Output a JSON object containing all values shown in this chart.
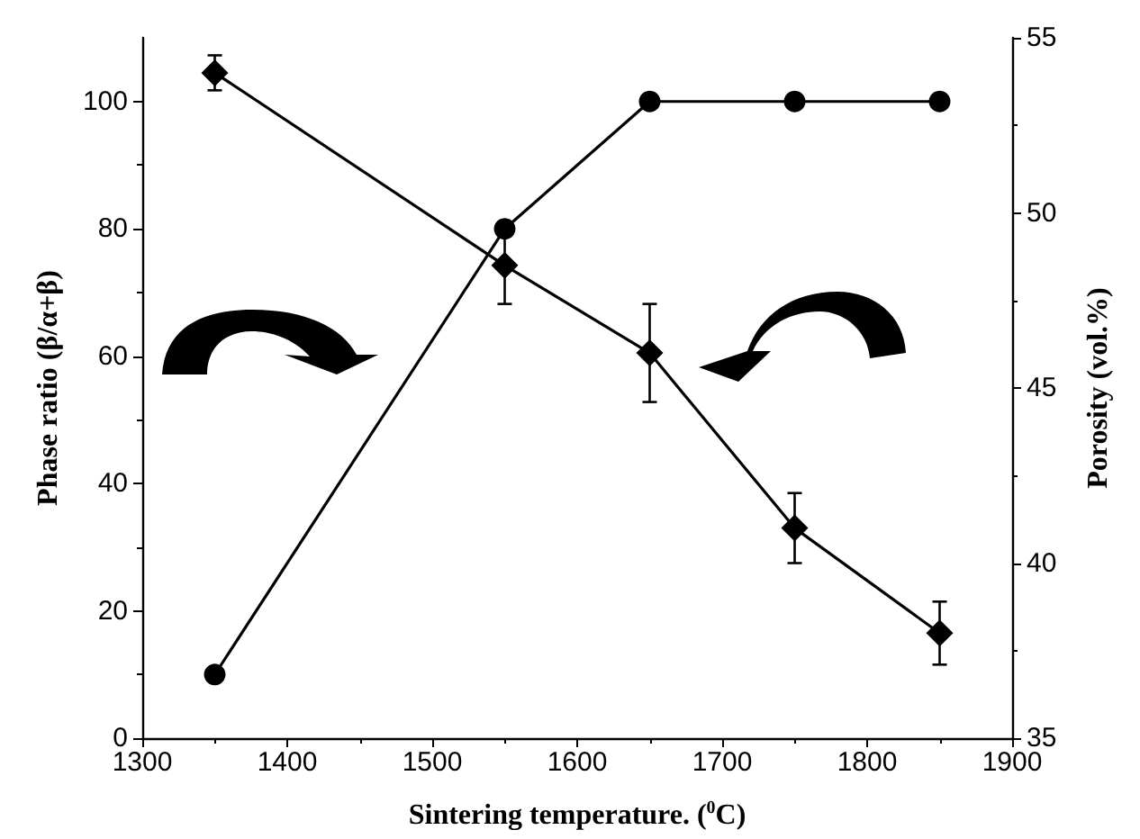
{
  "chart_data": {
    "type": "line",
    "xlabel": "Sintering temperature. ($^{0}$C)",
    "ylabel": "Phase ratio (β/α+β)",
    "y2label": "Porosity (vol.%)",
    "x": [
      1350,
      1550,
      1650,
      1750,
      1850
    ],
    "series": [
      {
        "color": "#000000",
        "marker": "circle",
        "values": [
          10,
          80,
          100,
          100,
          100
        ]
      },
      {
        "color": "#000000",
        "marker": "diamond",
        "axis": "y2",
        "values": [
          54.0,
          48.5,
          46.0,
          41.0,
          38.0
        ],
        "errors": [
          0.5,
          1.1,
          1.4,
          1.0,
          0.9
        ]
      }
    ],
    "xlim": [
      1300,
      1900
    ],
    "xticks": [
      1300,
      1400,
      1500,
      1600,
      1700,
      1800,
      1900
    ],
    "ylim": [
      0,
      110
    ],
    "yticks": [
      0,
      20,
      40,
      60,
      80,
      100
    ],
    "y2lim": [
      35,
      55
    ],
    "y2ticks": [
      35,
      40,
      45,
      50,
      55
    ],
    "line_style": "solid"
  }
}
